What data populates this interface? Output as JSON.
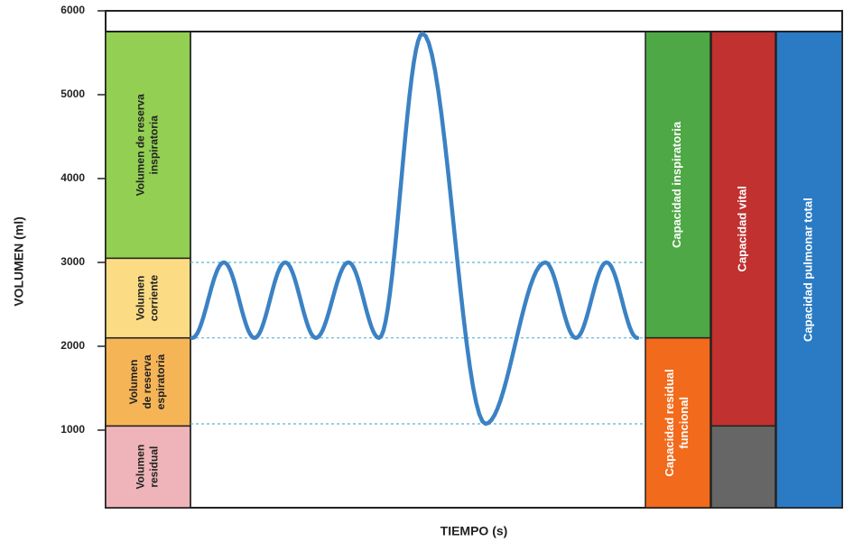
{
  "y_axis": {
    "label": "VOLUMEN (ml)",
    "lim": [
      75,
      6000
    ],
    "ticks": [
      1000,
      2000,
      3000,
      4000,
      5000,
      6000
    ]
  },
  "x_axis": {
    "label": "TIEMPO (s)"
  },
  "volumes": [
    {
      "lines": [
        "Volumen",
        "residual"
      ],
      "from": 75,
      "to": 1050,
      "color": "#efb4b9"
    },
    {
      "lines": [
        "Volumen",
        "de reserva",
        "espiratoria"
      ],
      "from": 1050,
      "to": 2100,
      "color": "#f5b557"
    },
    {
      "lines": [
        "Volumen",
        "corriente"
      ],
      "from": 2100,
      "to": 3050,
      "color": "#fbdc84"
    },
    {
      "lines": [
        "Volumen de reserva",
        "inspiratoria"
      ],
      "from": 3050,
      "to": 5750,
      "color": "#92cf52"
    }
  ],
  "capacities": [
    {
      "lines": [
        "Capacidad inspiratoria"
      ],
      "from": 2100,
      "to": 5750,
      "color": "#4ea845",
      "column": 0
    },
    {
      "lines": [
        "Capacidad residual",
        "funcional"
      ],
      "from": 75,
      "to": 2100,
      "color": "#f26a1b",
      "column": 0
    },
    {
      "lines": [
        "Capacidad vital"
      ],
      "from": 1050,
      "to": 5750,
      "color": "#c1312f",
      "column": 1
    },
    {
      "lines": [],
      "from": 75,
      "to": 1050,
      "color": "#666666",
      "column": 1
    },
    {
      "lines": [
        "Capacidad pulmonar total"
      ],
      "from": 75,
      "to": 5750,
      "color": "#2a7bc4",
      "column": 2
    }
  ],
  "curve": {
    "color": "#3b82c4",
    "values": [
      2100,
      3000,
      2100,
      3000,
      2100,
      3000,
      2100,
      5730,
      1075,
      3000,
      2100,
      3000,
      2100
    ]
  }
}
